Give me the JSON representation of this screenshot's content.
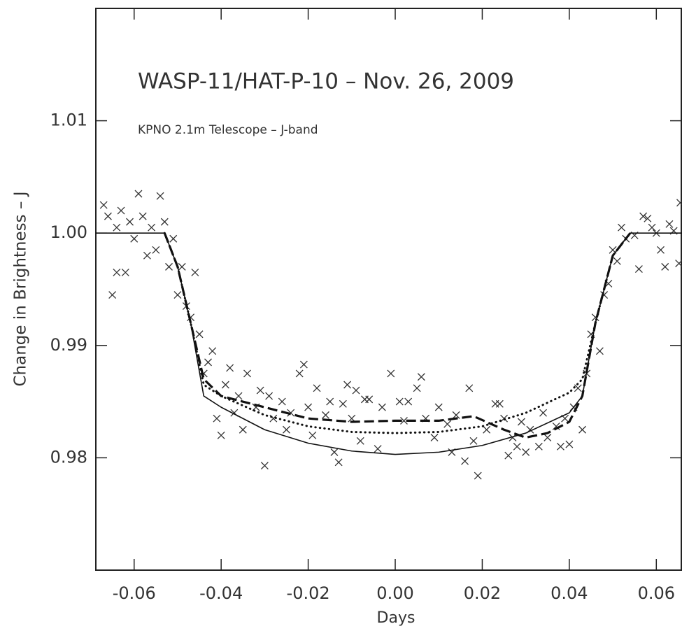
{
  "chart_data": {
    "type": "scatter",
    "title": "WASP-11/HAT-P-10 – Nov. 26, 2009",
    "subtitle": "KPNO 2.1m Telescope – J-band",
    "x_label": "Days",
    "y_label": "Change in Brightness – J",
    "xlim": [
      -0.0688,
      0.0659
    ],
    "ylim": [
      0.97,
      1.02
    ],
    "xticks": [
      -0.06,
      -0.04,
      -0.02,
      {
        "value": 0,
        "label": "0.00"
      },
      0.02,
      0.04,
      0.06
    ],
    "yticks": [
      0.98,
      0.99,
      {
        "value": 1,
        "label": "1.00"
      },
      1.01
    ],
    "color": "#333333",
    "series": [
      {
        "style": "points",
        "x": [
          -0.067,
          -0.066,
          -0.065,
          -0.064,
          -0.064,
          -0.063,
          -0.062,
          -0.061,
          -0.06,
          -0.059,
          -0.058,
          -0.057,
          -0.056,
          -0.055,
          -0.054,
          -0.053,
          -0.052,
          -0.051,
          -0.05,
          -0.049,
          -0.048,
          -0.047,
          -0.046,
          -0.045,
          -0.044,
          -0.043,
          -0.042,
          -0.041,
          -0.04,
          -0.039,
          -0.038,
          -0.037,
          -0.036,
          -0.035,
          -0.034,
          -0.032,
          -0.031,
          -0.03,
          -0.029,
          -0.028,
          -0.026,
          -0.025,
          -0.024,
          -0.022,
          -0.021,
          -0.02,
          -0.019,
          -0.018,
          -0.016,
          -0.015,
          -0.014,
          -0.013,
          -0.012,
          -0.011,
          -0.01,
          -0.009,
          -0.008,
          -0.007,
          -0.006,
          -0.004,
          -0.003,
          -0.001,
          0.001,
          0.002,
          0.003,
          0.005,
          0.006,
          0.007,
          0.009,
          0.01,
          0.012,
          0.013,
          0.014,
          0.016,
          0.017,
          0.018,
          0.019,
          0.021,
          0.023,
          0.024,
          0.025,
          0.026,
          0.027,
          0.028,
          0.029,
          0.03,
          0.031,
          0.033,
          0.034,
          0.035,
          0.037,
          0.038,
          0.039,
          0.04,
          0.041,
          0.042,
          0.043,
          0.044,
          0.045,
          0.046,
          0.047,
          0.048,
          0.049,
          0.05,
          0.051,
          0.052,
          0.053,
          0.055,
          0.056,
          0.057,
          0.058,
          0.059,
          0.06,
          0.061,
          0.062,
          0.063,
          0.064,
          0.0655,
          0.0652
        ],
        "values": [
          1.0025,
          1.0015,
          0.9945,
          1.0005,
          0.9965,
          1.002,
          0.9965,
          1.001,
          0.9995,
          1.0035,
          1.0015,
          0.998,
          1.0005,
          0.9985,
          1.0033,
          1.001,
          0.997,
          0.9995,
          0.9945,
          0.997,
          0.9935,
          0.9925,
          0.9965,
          0.991,
          0.9875,
          0.9885,
          0.9895,
          0.9835,
          0.982,
          0.9865,
          0.988,
          0.984,
          0.9855,
          0.9825,
          0.9875,
          0.9845,
          0.986,
          0.9793,
          0.9855,
          0.9835,
          0.985,
          0.9825,
          0.984,
          0.9875,
          0.9883,
          0.9845,
          0.982,
          0.9862,
          0.9838,
          0.985,
          0.9805,
          0.9796,
          0.9848,
          0.9865,
          0.9835,
          0.986,
          0.9815,
          0.9852,
          0.9852,
          0.9808,
          0.9845,
          0.9875,
          0.985,
          0.9833,
          0.985,
          0.9862,
          0.9872,
          0.9835,
          0.9818,
          0.9845,
          0.983,
          0.9805,
          0.9838,
          0.9797,
          0.9862,
          0.9815,
          0.9784,
          0.9825,
          0.9848,
          0.9848,
          0.9835,
          0.9802,
          0.9818,
          0.981,
          0.9832,
          0.9805,
          0.9825,
          0.981,
          0.984,
          0.9818,
          0.9828,
          0.981,
          0.9835,
          0.9812,
          0.9845,
          0.9862,
          0.9825,
          0.9875,
          0.991,
          0.9925,
          0.9895,
          0.9945,
          0.9955,
          0.9985,
          0.9975,
          1.0005,
          0.9995,
          0.9998,
          0.9968,
          1.0015,
          1.0013,
          1.0005,
          1.0,
          0.9985,
          0.997,
          1.0008,
          1.0002,
          1.0027,
          0.9973
        ]
      },
      {
        "style": "solid",
        "x": [
          -0.0688,
          -0.053,
          -0.05,
          -0.047,
          -0.044,
          -0.04,
          -0.03,
          -0.02,
          -0.01,
          0,
          0.01,
          0.02,
          0.03,
          0.04,
          0.043,
          0.046,
          0.05,
          0.054,
          0.0659
        ],
        "values": [
          1.0,
          1.0,
          0.997,
          0.992,
          0.9855,
          0.9845,
          0.9825,
          0.9813,
          0.9806,
          0.9803,
          0.9805,
          0.9811,
          0.9822,
          0.984,
          0.9855,
          0.992,
          0.998,
          1.0,
          1.0
        ]
      },
      {
        "style": "dashed",
        "x": [
          -0.053,
          -0.05,
          -0.047,
          -0.044,
          -0.04,
          -0.03,
          -0.02,
          -0.01,
          0,
          0.01,
          0.018,
          0.025,
          0.03,
          0.035,
          0.04,
          0.043,
          0.046,
          0.05,
          0.054
        ],
        "values": [
          1.0,
          0.997,
          0.992,
          0.987,
          0.9855,
          0.9845,
          0.9835,
          0.9832,
          0.9833,
          0.9833,
          0.9837,
          0.9825,
          0.9818,
          0.9822,
          0.9832,
          0.9855,
          0.992,
          0.998,
          1.0
        ]
      },
      {
        "style": "dotted",
        "x": [
          -0.053,
          -0.05,
          -0.047,
          -0.044,
          -0.04,
          -0.03,
          -0.02,
          -0.01,
          0,
          0.01,
          0.02,
          0.03,
          0.04,
          0.043,
          0.046,
          0.05,
          0.054
        ],
        "values": [
          1.0,
          0.997,
          0.992,
          0.9865,
          0.9855,
          0.9838,
          0.9828,
          0.9823,
          0.9822,
          0.9823,
          0.9828,
          0.984,
          0.9858,
          0.987,
          0.992,
          0.998,
          1.0
        ]
      }
    ]
  }
}
